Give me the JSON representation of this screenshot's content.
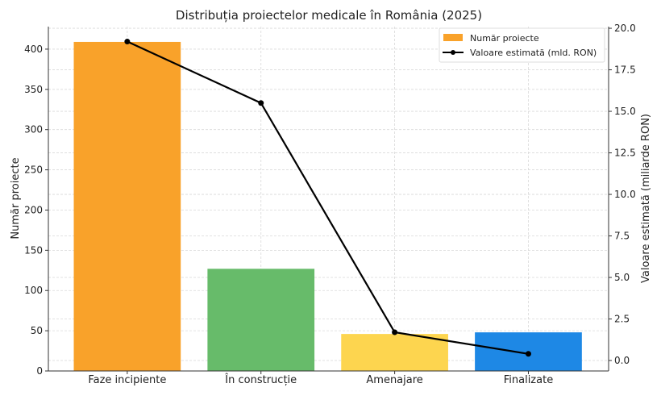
{
  "chart_data": {
    "type": "bar",
    "title": "Distribuția proiectelor medicale în România (2025)",
    "categories": [
      "Faze incipiente",
      "În construcție",
      "Amenajare",
      "Finalizate"
    ],
    "bar_colors": [
      "#f9a22a",
      "#67bb6a",
      "#fdd54f",
      "#1e88e5"
    ],
    "line_color": "#000000",
    "series": [
      {
        "name": "Număr proiecte",
        "type": "bar",
        "axis": "left",
        "values": [
          409,
          127,
          46,
          48
        ]
      },
      {
        "name": "Valoare estimată (mld. RON)",
        "type": "line",
        "axis": "right",
        "values": [
          19.2,
          15.5,
          1.7,
          0.4
        ]
      }
    ],
    "ylabel": "Număr proiecte",
    "ylabel_right": "Valoare estimată (miliarde RON)",
    "ylim": [
      0,
      428
    ],
    "ylim_right": [
      -0.63,
      20.1
    ],
    "yticks": [
      0,
      50,
      100,
      150,
      200,
      250,
      300,
      350,
      400
    ],
    "yticks_right": [
      "0.0",
      "2.5",
      "5.0",
      "7.5",
      "10.0",
      "12.5",
      "15.0",
      "17.5",
      "20.0"
    ],
    "grid": true,
    "legend_position": "top-right"
  }
}
